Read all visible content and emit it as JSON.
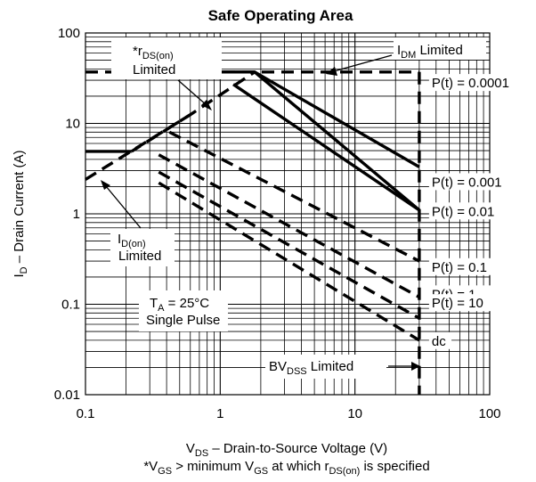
{
  "chart_data": {
    "type": "line",
    "title": "Safe Operating Area",
    "xscale": "log",
    "yscale": "log",
    "xlim": [
      0.1,
      100
    ],
    "ylim": [
      0.01,
      100
    ],
    "grid": true,
    "xticks": [
      "0.1",
      "1",
      "10",
      "100"
    ],
    "yticks": [
      "100",
      "10",
      "1",
      "0.1",
      "0.01"
    ],
    "xlabel": {
      "symbol": "V",
      "sub": "DS",
      "rest": " – Drain-to-Source Voltage (V)"
    },
    "ylabel": {
      "symbol": "I",
      "sub": "D",
      "rest": " – Drain Current (A)"
    },
    "footnote": {
      "p1": "*V",
      "s1": "GS",
      "p2": " > minimum V",
      "s2": "GS",
      "p3": " at which r",
      "s3": "DS(on)",
      "p4": " is specified"
    },
    "annotations": {
      "rds": {
        "star": "*r",
        "sub": "DS(on)",
        "line2": "Limited"
      },
      "idm": {
        "main": "I",
        "sub": "DM",
        "rest": " Limited"
      },
      "idon": {
        "main": "I",
        "sub": "D(on)",
        "line2": "Limited"
      },
      "ta": {
        "main": "T",
        "sub": "A",
        "rest": " = 25°C",
        "line2": "Single Pulse"
      },
      "bv": {
        "main": "BV",
        "sub": "DSS",
        "rest": " Limited"
      }
    },
    "series": [
      {
        "name": "P(t) = 0.0001",
        "dash": "solid",
        "points": [
          [
            1.0,
            37.0
          ],
          [
            1.8,
            37.0
          ],
          [
            30,
            1.1
          ]
        ]
      },
      {
        "name": "P(t) = 0.001",
        "dash": "solid",
        "points": [
          [
            1.0,
            37.0
          ],
          [
            1.8,
            37.0
          ],
          [
            30,
            3.3
          ]
        ]
      },
      {
        "name": "P(t) = 0.01",
        "dash": "solid",
        "points": [
          [
            1.25,
            27.0
          ],
          [
            30,
            1.1
          ]
        ]
      },
      {
        "name": "P(t) = 0.1",
        "dash": "dashed",
        "points": [
          [
            0.42,
            8.0
          ],
          [
            30,
            0.3
          ]
        ]
      },
      {
        "name": "P(t) = 1",
        "dash": "dashed",
        "points": [
          [
            0.35,
            4.5
          ],
          [
            30,
            0.12
          ]
        ]
      },
      {
        "name": "P(t) = 10",
        "dash": "dashed",
        "points": [
          [
            0.35,
            2.9
          ],
          [
            30,
            0.07
          ]
        ]
      },
      {
        "name": "dc",
        "dash": "dashed",
        "points": [
          [
            0.35,
            2.2
          ],
          [
            30,
            0.04
          ]
        ]
      },
      {
        "name": "",
        "dash": "dashed",
        "points": [
          [
            0.1,
            2.4
          ],
          [
            0.6,
            12.5
          ],
          [
            1.8,
            37.0
          ]
        ]
      },
      {
        "name": "",
        "dash": "dashed",
        "points": [
          [
            0.6,
            12.5
          ],
          [
            0.22,
            4.9
          ]
        ]
      },
      {
        "name": "",
        "dash": "solid",
        "points": [
          [
            0.1,
            4.9
          ],
          [
            0.22,
            4.9
          ]
        ]
      },
      {
        "name": "",
        "dash": "dashed",
        "points": [
          [
            0.1,
            37.0
          ],
          [
            30,
            37.0
          ]
        ]
      },
      {
        "name": "",
        "dash": "dashed",
        "points": [
          [
            30,
            37.0
          ],
          [
            30,
            0.01
          ]
        ]
      }
    ],
    "curve_labels": [
      {
        "text": "P(t) = 0.0001",
        "x": 30,
        "y": 25.0
      },
      {
        "text": "P(t) = 0.001",
        "x": 30,
        "y": 2.0
      },
      {
        "text": "P(t) = 0.01",
        "x": 30,
        "y": 0.95
      },
      {
        "text": "P(t) = 0.1",
        "x": 30,
        "y": 0.23
      },
      {
        "text": "P(t) = 1",
        "x": 30,
        "y": 0.115
      },
      {
        "text": "P(t) = 10",
        "x": 30,
        "y": 0.092
      },
      {
        "text": "dc",
        "x": 30,
        "y": 0.035
      }
    ]
  }
}
